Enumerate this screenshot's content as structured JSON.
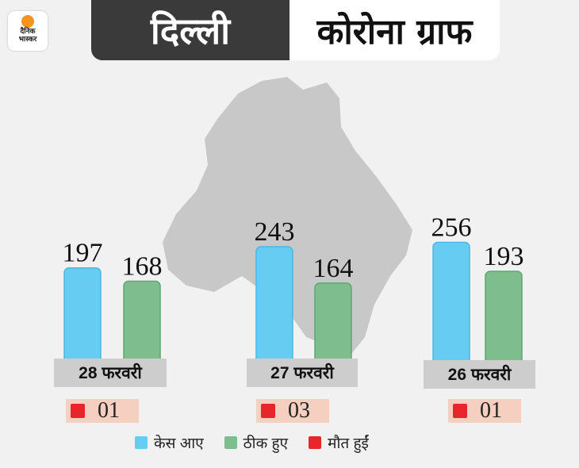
{
  "brand": {
    "logo_line1": "दैनिक",
    "logo_line2": "भास्कर"
  },
  "header": {
    "left": "दिल्ली",
    "right": "कोरोना ग्राफ"
  },
  "colors": {
    "cases": "#67ccf2",
    "recovered": "#7ebd8e",
    "deaths": "#e8252a"
  },
  "chart_data": {
    "type": "bar",
    "categories": [
      "28 फरवरी",
      "27 फरवरी",
      "26 फरवरी"
    ],
    "series": [
      {
        "name": "केस आए",
        "values": [
          197,
          243,
          256
        ]
      },
      {
        "name": "ठीक हुए",
        "values": [
          168,
          164,
          193
        ]
      },
      {
        "name": "मौत हुईं",
        "values": [
          "01",
          "03",
          "01"
        ]
      }
    ],
    "value_labels": {
      "cases": [
        "197",
        "243",
        "256"
      ],
      "recovered": [
        "168",
        "164",
        "193"
      ]
    },
    "legend": [
      "केस आए",
      "ठीक हुए",
      "मौत हुईं"
    ]
  }
}
